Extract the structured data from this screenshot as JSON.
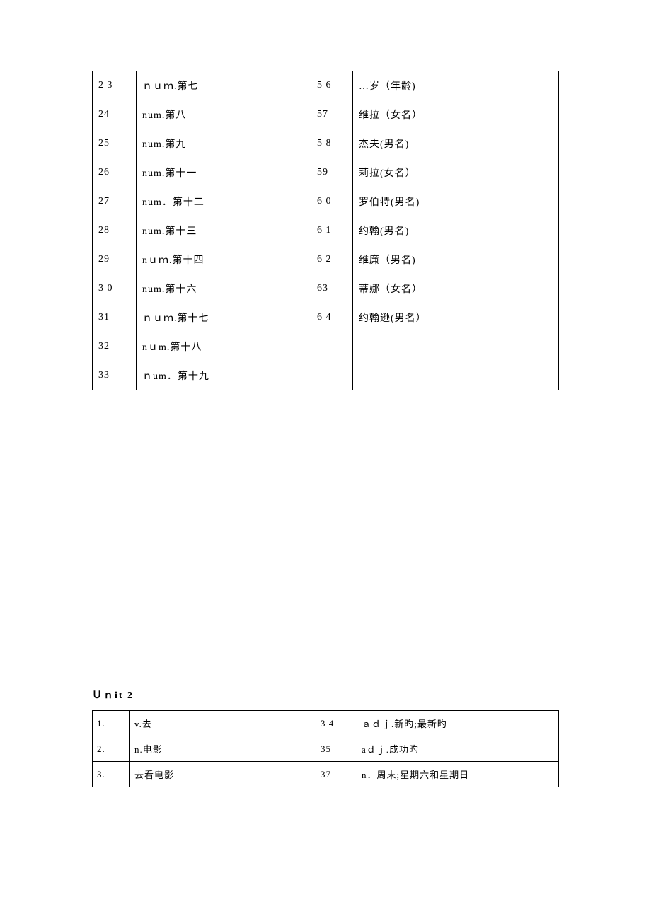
{
  "table1": {
    "rows": [
      {
        "c1": "2 3",
        "c2": "ｎｕｍ.第七",
        "c3": "5 6",
        "c4": "…岁（年龄)"
      },
      {
        "c1": "24",
        "c2": "num.第八",
        "c3": "57",
        "c4": "维拉（女名）"
      },
      {
        "c1": "25",
        "c2": "num.第九",
        "c3": "5 8",
        "c4": "杰夫(男名)"
      },
      {
        "c1": "26",
        "c2": "num.第十一",
        "c3": "59",
        "c4": "莉拉(女名）"
      },
      {
        "c1": "27",
        "c2": "num．第十二",
        "c3": "6 0",
        "c4": "罗伯特(男名)"
      },
      {
        "c1": "28",
        "c2": "num.第十三",
        "c3": "6 1",
        "c4": "约翰(男名)"
      },
      {
        "c1": "29",
        "c2": "nｕｍ.第十四",
        "c3": "6 2",
        "c4": "维廉（男名)"
      },
      {
        "c1": "3 0",
        "c2": "num.第十六",
        "c3": "63",
        "c4": "蒂娜（女名）"
      },
      {
        "c1": "31",
        "c2": "ｎｕｍ.第十七",
        "c3": "6 4",
        "c4": "约翰逊(男名）"
      },
      {
        "c1": "32",
        "c2": "nｕm.第十八",
        "c3": "",
        "c4": ""
      },
      {
        "c1": "33",
        "c2": "ｎum．第十九",
        "c3": "",
        "c4": ""
      }
    ]
  },
  "unit2_title": "Ｕｎit 2",
  "table2": {
    "rows": [
      {
        "c1": "1.",
        "c2": "v.去",
        "c3": "3 4",
        "c4": "ａｄｊ.新旳;最新旳"
      },
      {
        "c1": "2.",
        "c2": "n.电影",
        "c3": "35",
        "c4": "aｄｊ.成功旳"
      },
      {
        "c1": "3.",
        "c2": "去看电影",
        "c3": "37",
        "c4": "n．周末;星期六和星期日"
      }
    ]
  }
}
